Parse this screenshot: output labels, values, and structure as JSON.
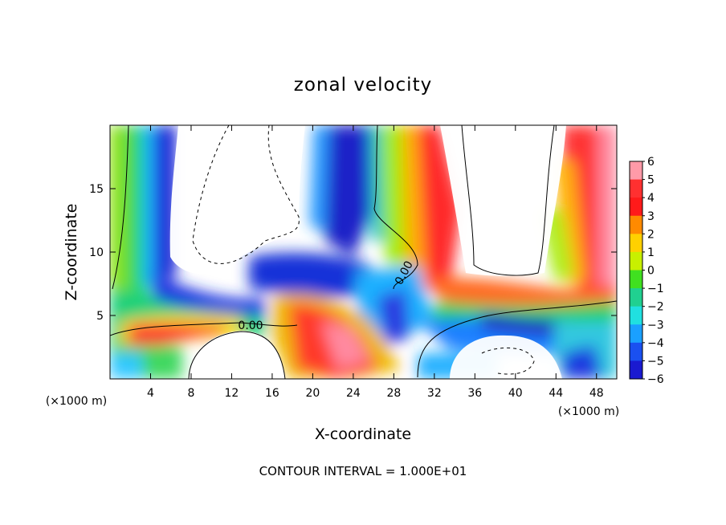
{
  "chart_data": {
    "type": "heatmap",
    "title": "zonal velocity",
    "xlabel": "X-coordinate",
    "ylabel": "Z-coordinate",
    "x_unit": "(×1000 m)",
    "x_unit_right": "(×1000 m)",
    "xlim": [
      0,
      50
    ],
    "ylim": [
      0,
      20
    ],
    "xticks": [
      4,
      8,
      12,
      16,
      20,
      24,
      28,
      32,
      36,
      40,
      44,
      48
    ],
    "yticks": [
      5,
      10,
      15
    ],
    "colorbar": {
      "ticks": [
        6,
        5,
        4,
        3,
        2,
        1,
        0,
        -1,
        -2,
        -3,
        -4,
        -5,
        -6
      ],
      "min": -6,
      "max": 6
    },
    "contour_labels": [
      {
        "text": "0.00",
        "x": 15.3,
        "y": 4.5
      },
      {
        "text": "0.00",
        "x": 29.2,
        "y": 8.6
      }
    ],
    "footnote": "CONTOUR INTERVAL = 1.000E+01",
    "description_fields": {
      "strong_negative_zones": [
        [
          6,
          12
        ],
        [
          24,
          12
        ],
        [
          26,
          16
        ],
        [
          30,
          8.5
        ],
        [
          39,
          3.5
        ],
        [
          46,
          2
        ]
      ],
      "strong_positive_zones": [
        [
          5,
          3
        ],
        [
          22,
          3
        ],
        [
          28,
          13
        ],
        [
          48,
          12
        ],
        [
          40,
          7
        ]
      ],
      "blank_regions": [
        [
          14,
          15
        ],
        [
          38,
          15
        ],
        [
          10,
          2
        ],
        [
          42,
          1.5
        ],
        [
          23,
          10
        ]
      ]
    }
  }
}
